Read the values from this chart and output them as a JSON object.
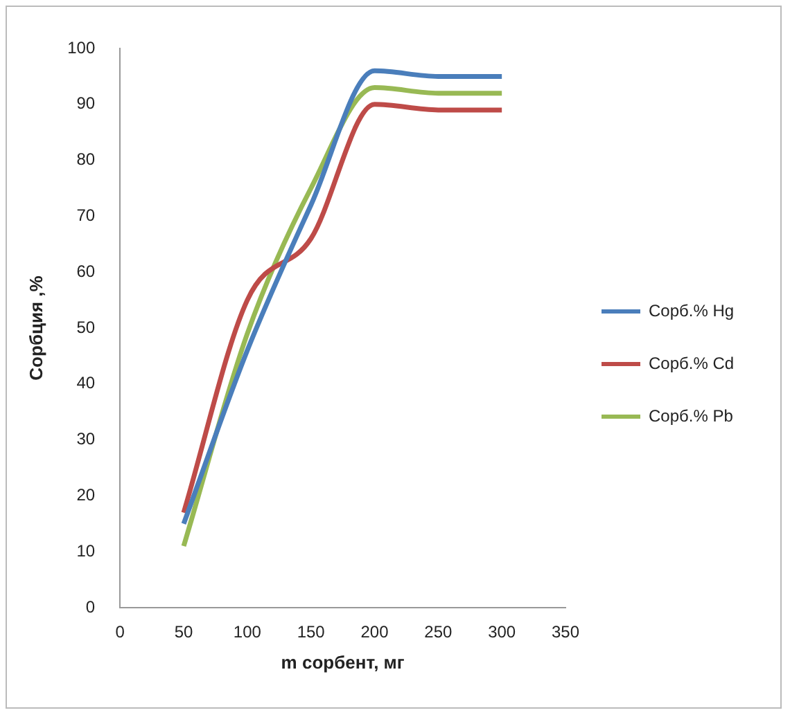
{
  "chart_data": {
    "type": "line",
    "xlabel": "m сорбент, мг",
    "ylabel": "Сорбция ,%",
    "x": [
      50,
      100,
      150,
      200,
      250,
      300
    ],
    "series": [
      {
        "name": "Сорб.% Hg",
        "color": "#4a7ebb",
        "values": [
          15,
          46,
          72,
          96,
          95,
          95
        ]
      },
      {
        "name": "Сорб.% Cd",
        "color": "#be4b48",
        "values": [
          17,
          55,
          66,
          90,
          89,
          89
        ]
      },
      {
        "name": "Сорб.% Pb",
        "color": "#98b954",
        "values": [
          11,
          49,
          75,
          93,
          92,
          92
        ]
      }
    ],
    "xlim": [
      0,
      350
    ],
    "xticks": [
      0,
      50,
      100,
      150,
      200,
      250,
      300,
      350
    ],
    "ylim": [
      0,
      100
    ],
    "yticks": [
      0,
      10,
      20,
      30,
      40,
      50,
      60,
      70,
      80,
      90,
      100
    ],
    "grid": false,
    "legend": "right",
    "marker": "none",
    "line_style": "solid"
  }
}
